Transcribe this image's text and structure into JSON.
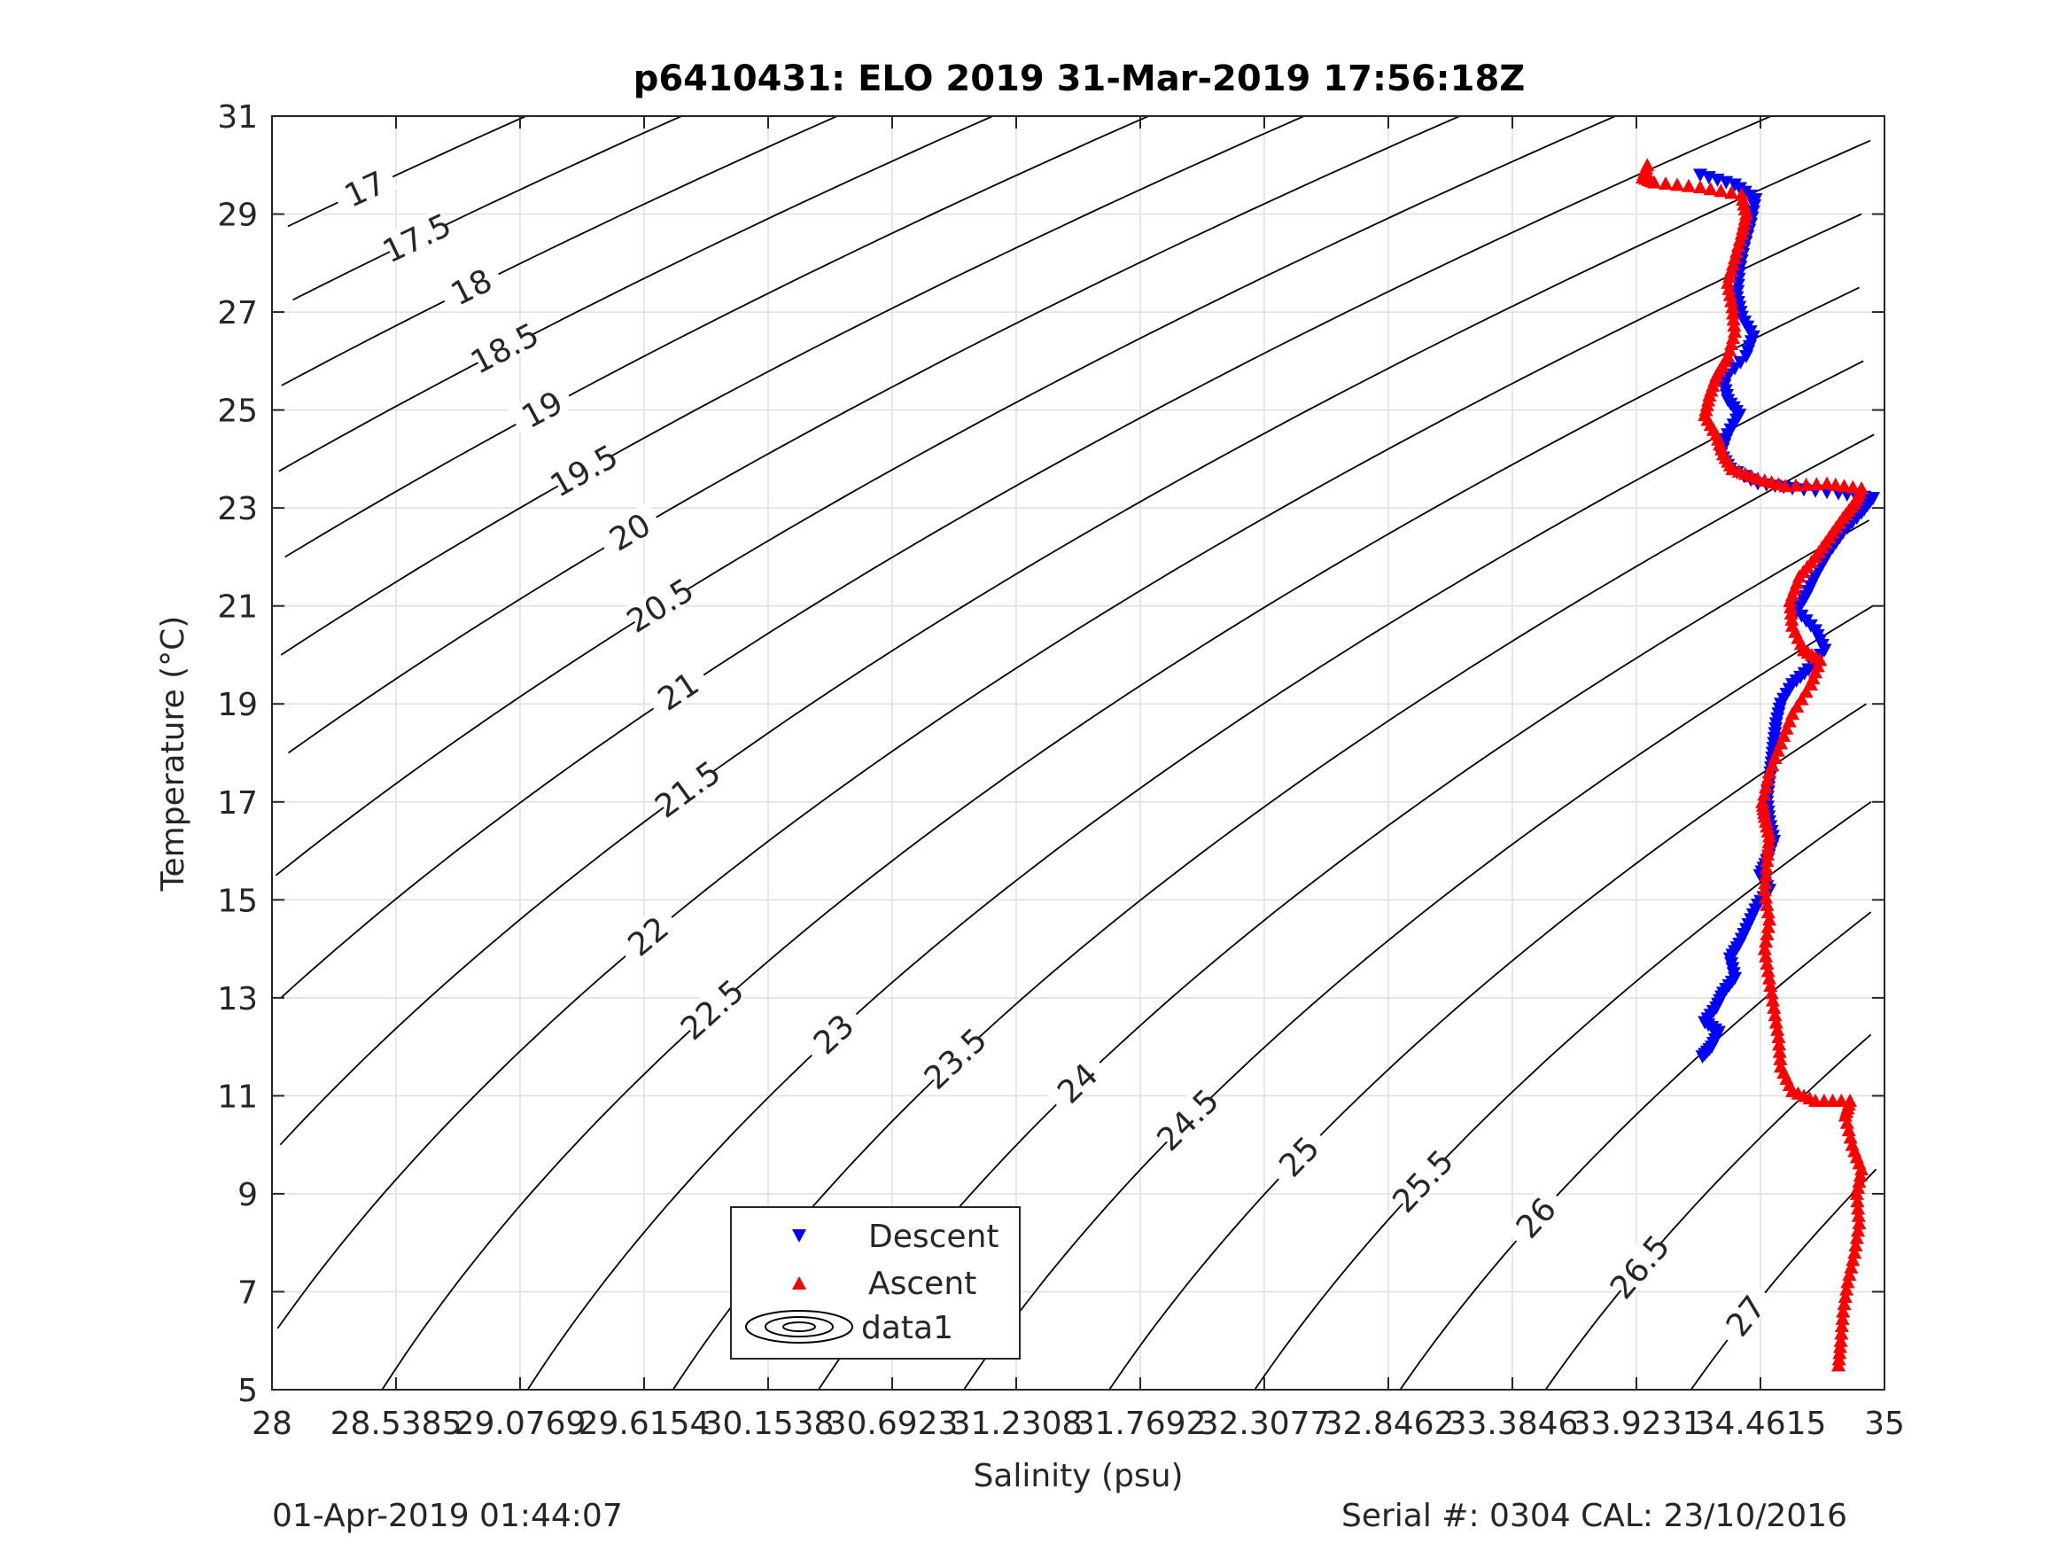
{
  "chart_data": {
    "type": "scatter",
    "title": "p6410431: ELO 2019 31-Mar-2019 17:56:18Z",
    "xlabel": "Salinity (psu)",
    "ylabel": "Temperature (°C)",
    "xlim": [
      28,
      35
    ],
    "ylim": [
      5,
      31
    ],
    "x_ticks": [
      "28",
      "28.5385",
      "29.0769",
      "29.6154",
      "30.1538",
      "30.6923",
      "31.2308",
      "31.7692",
      "32.3077",
      "32.8462",
      "33.3846",
      "33.9231",
      "34.4615",
      "35"
    ],
    "y_ticks": [
      "5",
      "7",
      "9",
      "11",
      "13",
      "15",
      "17",
      "19",
      "21",
      "23",
      "25",
      "27",
      "29",
      "31"
    ],
    "grid": true,
    "legend_position": "bottom-center",
    "legend": [
      "Descent",
      "Ascent",
      "data1"
    ],
    "contour_levels": [
      17,
      17.5,
      18,
      18.5,
      19,
      19.5,
      20,
      20.5,
      21,
      21.5,
      22,
      22.5,
      23,
      23.5,
      24,
      24.5,
      25,
      25.5,
      26,
      26.5,
      27
    ],
    "series": [
      {
        "name": "Descent",
        "color": "#0000ff",
        "marker": "triangle-down",
        "points": [
          [
            34.2,
            29.8
          ],
          [
            34.35,
            29.6
          ],
          [
            34.44,
            29.3
          ],
          [
            34.42,
            28.8
          ],
          [
            34.39,
            28.3
          ],
          [
            34.37,
            27.8
          ],
          [
            34.36,
            27.3
          ],
          [
            34.38,
            26.9
          ],
          [
            34.43,
            26.5
          ],
          [
            34.4,
            26.1
          ],
          [
            34.3,
            25.6
          ],
          [
            34.32,
            25.2
          ],
          [
            34.37,
            24.9
          ],
          [
            34.32,
            24.5
          ],
          [
            34.29,
            24.1
          ],
          [
            34.33,
            23.8
          ],
          [
            34.45,
            23.5
          ],
          [
            34.6,
            23.4
          ],
          [
            34.8,
            23.3
          ],
          [
            34.95,
            23.2
          ],
          [
            34.9,
            22.9
          ],
          [
            34.82,
            22.5
          ],
          [
            34.76,
            22.1
          ],
          [
            34.7,
            21.6
          ],
          [
            34.66,
            21.2
          ],
          [
            34.62,
            20.9
          ],
          [
            34.7,
            20.5
          ],
          [
            34.74,
            20.1
          ],
          [
            34.67,
            19.7
          ],
          [
            34.6,
            19.4
          ],
          [
            34.55,
            19.0
          ],
          [
            34.53,
            18.6
          ],
          [
            34.52,
            18.2
          ],
          [
            34.51,
            17.8
          ],
          [
            34.5,
            17.4
          ],
          [
            34.49,
            17.0
          ],
          [
            34.5,
            16.6
          ],
          [
            34.52,
            16.2
          ],
          [
            34.49,
            15.8
          ],
          [
            34.46,
            15.5
          ],
          [
            34.5,
            15.2
          ],
          [
            34.45,
            14.9
          ],
          [
            34.41,
            14.5
          ],
          [
            34.37,
            14.1
          ],
          [
            34.33,
            13.8
          ],
          [
            34.35,
            13.4
          ],
          [
            34.3,
            13.1
          ],
          [
            34.27,
            12.8
          ],
          [
            34.22,
            12.5
          ],
          [
            34.28,
            12.3
          ],
          [
            34.25,
            12.0
          ],
          [
            34.21,
            11.8
          ]
        ]
      },
      {
        "name": "Ascent",
        "color": "#ff0000",
        "marker": "triangle-up",
        "points": [
          [
            34.8,
            5.5
          ],
          [
            34.81,
            6.0
          ],
          [
            34.82,
            6.6
          ],
          [
            34.84,
            7.2
          ],
          [
            34.87,
            7.8
          ],
          [
            34.89,
            8.4
          ],
          [
            34.88,
            9.0
          ],
          [
            34.9,
            9.5
          ],
          [
            34.86,
            10.0
          ],
          [
            34.83,
            10.6
          ],
          [
            34.85,
            10.9
          ],
          [
            34.7,
            10.9
          ],
          [
            34.6,
            11.1
          ],
          [
            34.55,
            11.6
          ],
          [
            34.54,
            12.2
          ],
          [
            34.52,
            12.8
          ],
          [
            34.5,
            13.4
          ],
          [
            34.48,
            14.0
          ],
          [
            34.5,
            14.6
          ],
          [
            34.48,
            15.2
          ],
          [
            34.49,
            15.8
          ],
          [
            34.5,
            16.3
          ],
          [
            34.48,
            16.7
          ],
          [
            34.47,
            17.0
          ],
          [
            34.5,
            17.6
          ],
          [
            34.55,
            18.2
          ],
          [
            34.6,
            18.8
          ],
          [
            34.68,
            19.4
          ],
          [
            34.72,
            19.9
          ],
          [
            34.65,
            20.1
          ],
          [
            34.6,
            20.6
          ],
          [
            34.59,
            21.1
          ],
          [
            34.63,
            21.6
          ],
          [
            34.7,
            22.0
          ],
          [
            34.76,
            22.4
          ],
          [
            34.82,
            22.8
          ],
          [
            34.87,
            23.1
          ],
          [
            34.9,
            23.4
          ],
          [
            34.75,
            23.5
          ],
          [
            34.57,
            23.45
          ],
          [
            34.45,
            23.6
          ],
          [
            34.34,
            23.8
          ],
          [
            34.3,
            24.1
          ],
          [
            34.27,
            24.5
          ],
          [
            34.22,
            24.9
          ],
          [
            34.24,
            25.3
          ],
          [
            34.27,
            25.7
          ],
          [
            34.32,
            26.1
          ],
          [
            34.35,
            26.6
          ],
          [
            34.34,
            27.1
          ],
          [
            34.32,
            27.6
          ],
          [
            34.35,
            28.1
          ],
          [
            34.38,
            28.6
          ],
          [
            34.4,
            29.0
          ],
          [
            34.38,
            29.4
          ],
          [
            34.2,
            29.55
          ],
          [
            34.0,
            29.65
          ],
          [
            33.95,
            29.75
          ],
          [
            33.97,
            30.0
          ]
        ]
      }
    ]
  },
  "footer": {
    "left": "01-Apr-2019 01:44:07",
    "right": "Serial #: 0304  CAL: 23/10/2016"
  }
}
